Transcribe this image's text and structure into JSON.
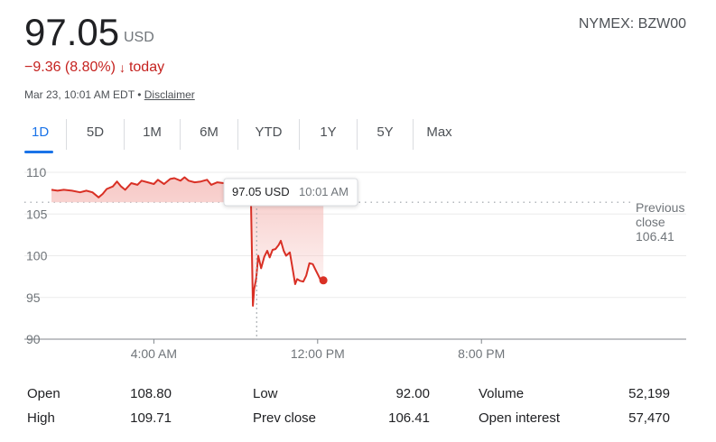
{
  "quote": {
    "price": "97.05",
    "currency": "USD",
    "exchange": "NYMEX: BZW00",
    "change": "−9.36 (8.80%)",
    "change_arrow": "↓",
    "change_suffix": "today",
    "timestamp": "Mar 23, 10:01 AM EDT",
    "separator": "•",
    "disclaimer": "Disclaimer"
  },
  "tabs": [
    "1D",
    "5D",
    "1M",
    "6M",
    "YTD",
    "1Y",
    "5Y",
    "Max"
  ],
  "active_tab": "1D",
  "tooltip": {
    "price": "97.05 USD",
    "time": "10:01 AM"
  },
  "previous_close_label": [
    "Previous",
    "close",
    "106.41"
  ],
  "colors": {
    "line": "#d93025",
    "area_top": "#f6c5c2",
    "accent": "#1a73e8",
    "negative": "#c5221f"
  },
  "chart_data": {
    "type": "area",
    "ylim": [
      90,
      110
    ],
    "yticks": [
      90,
      95,
      100,
      105,
      110
    ],
    "xlim": [
      0,
      15.5
    ],
    "xticks": [
      {
        "v": 2.5,
        "label": "4:00 AM"
      },
      {
        "v": 6.5,
        "label": "12:00 PM"
      },
      {
        "v": 10.5,
        "label": "8:00 PM"
      }
    ],
    "previous_close": 106.41,
    "current_x": 5.01,
    "points": [
      [
        0.0,
        107.9
      ],
      [
        0.15,
        107.8
      ],
      [
        0.3,
        107.9
      ],
      [
        0.5,
        107.8
      ],
      [
        0.7,
        107.6
      ],
      [
        0.85,
        107.8
      ],
      [
        1.0,
        107.6
      ],
      [
        1.15,
        107.0
      ],
      [
        1.25,
        107.4
      ],
      [
        1.35,
        108.0
      ],
      [
        1.5,
        108.3
      ],
      [
        1.6,
        108.9
      ],
      [
        1.7,
        108.3
      ],
      [
        1.8,
        107.9
      ],
      [
        1.95,
        108.7
      ],
      [
        2.1,
        108.5
      ],
      [
        2.2,
        109.0
      ],
      [
        2.35,
        108.8
      ],
      [
        2.5,
        108.6
      ],
      [
        2.6,
        109.1
      ],
      [
        2.75,
        108.6
      ],
      [
        2.9,
        109.2
      ],
      [
        3.0,
        109.3
      ],
      [
        3.15,
        109.0
      ],
      [
        3.25,
        109.4
      ],
      [
        3.35,
        109.0
      ],
      [
        3.5,
        108.8
      ],
      [
        3.65,
        108.9
      ],
      [
        3.8,
        109.1
      ],
      [
        3.9,
        108.5
      ],
      [
        4.05,
        108.8
      ],
      [
        4.2,
        108.7
      ],
      [
        4.35,
        108.4
      ],
      [
        4.5,
        108.6
      ],
      [
        4.6,
        108.1
      ],
      [
        4.7,
        108.3
      ],
      [
        4.8,
        108.9
      ],
      [
        4.85,
        107.5
      ],
      [
        4.87,
        106.9
      ],
      [
        4.92,
        94.0
      ],
      [
        4.95,
        96.0
      ],
      [
        5.0,
        97.3
      ],
      [
        5.05,
        100.0
      ],
      [
        5.12,
        98.5
      ],
      [
        5.2,
        99.9
      ],
      [
        5.27,
        100.6
      ],
      [
        5.33,
        99.8
      ],
      [
        5.4,
        100.7
      ],
      [
        5.47,
        100.8
      ],
      [
        5.55,
        101.3
      ],
      [
        5.6,
        101.8
      ],
      [
        5.67,
        100.6
      ],
      [
        5.73,
        100.0
      ],
      [
        5.82,
        100.4
      ],
      [
        5.9,
        98.1
      ],
      [
        5.95,
        96.6
      ],
      [
        6.0,
        97.2
      ],
      [
        6.07,
        97.0
      ],
      [
        6.15,
        96.9
      ],
      [
        6.22,
        97.6
      ],
      [
        6.3,
        99.1
      ],
      [
        6.38,
        99.0
      ],
      [
        6.45,
        98.3
      ],
      [
        6.53,
        97.5
      ],
      [
        6.6,
        96.8
      ],
      [
        6.64,
        97.1
      ]
    ],
    "end_point": [
      6.64,
      97.05
    ]
  },
  "stats": [
    [
      {
        "label": "Open",
        "value": "108.80"
      },
      {
        "label": "Low",
        "value": "92.00"
      },
      {
        "label": "Volume",
        "value": "52,199"
      }
    ],
    [
      {
        "label": "High",
        "value": "109.71"
      },
      {
        "label": "Prev close",
        "value": "106.41"
      },
      {
        "label": "Open interest",
        "value": "57,470"
      }
    ]
  ]
}
